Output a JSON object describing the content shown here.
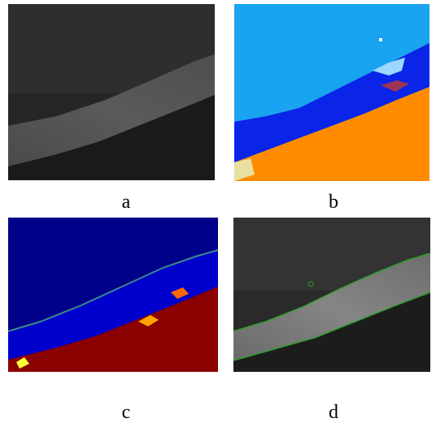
{
  "figure": {
    "panels": [
      {
        "label": "a"
      },
      {
        "label": "b"
      },
      {
        "label": "c"
      },
      {
        "label": "d"
      }
    ]
  }
}
